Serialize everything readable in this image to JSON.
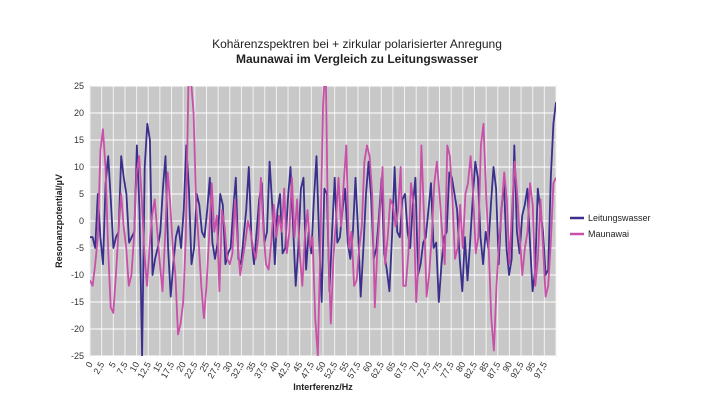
{
  "chart_data": {
    "type": "line",
    "title": "Kohärenzspektren bei + zirkular polarisierter Anregung",
    "subtitle": "Maunawai im Vergleich zu Leitungswasser",
    "xlabel": "Interferenz/Hz",
    "ylabel": "Resonanzpotential/µV",
    "ylim": [
      -25,
      25
    ],
    "yticks": [
      25,
      20,
      15,
      10,
      5,
      0,
      -5,
      -10,
      -15,
      -20,
      -25
    ],
    "x_tick_labels": [
      "0",
      "2,5",
      "5",
      "7,5",
      "10",
      "12,5",
      "15",
      "17,5",
      "20",
      "22,5",
      "25",
      "27,5",
      "30",
      "32,5",
      "35",
      "37,5",
      "40",
      "42,5",
      "45",
      "47,5",
      "50",
      "52,5",
      "55",
      "57,5",
      "60",
      "62,5",
      "65",
      "67,5",
      "70",
      "72,5",
      "75",
      "77,5",
      "80",
      "82,5",
      "85",
      "87,5",
      "90",
      "92,5",
      "95",
      "97,5"
    ],
    "grid": true,
    "legend_position": "right",
    "plot_background": "#c8c8c8",
    "series": [
      {
        "name": "Leitungswasser",
        "color": "#3a2f8c",
        "values": [
          -3,
          -3,
          -5,
          5,
          -3,
          -8,
          7,
          12,
          4,
          -5,
          -3,
          -2,
          12,
          8,
          5,
          -4,
          -3,
          -2,
          14,
          2,
          -25,
          10,
          18,
          15,
          -10,
          -7,
          -5,
          -2,
          6,
          12,
          -5,
          -14,
          -8,
          -3,
          -1,
          -5,
          2,
          14,
          6,
          -8,
          -5,
          5,
          3,
          -2,
          -3,
          2,
          8,
          -4,
          -7,
          -4,
          5,
          3,
          -8,
          -6,
          -5,
          2,
          8,
          -7,
          -8,
          -3,
          2,
          10,
          -3,
          -8,
          -2,
          4,
          7,
          -4,
          -2,
          11,
          3,
          -8,
          2,
          5,
          -6,
          -5,
          4,
          10,
          -1,
          -12,
          -5,
          6,
          8,
          -9,
          -2,
          -6,
          4,
          12,
          -3,
          -15,
          6,
          5,
          -13,
          -2,
          8,
          -4,
          -3,
          2,
          6,
          -4,
          -7,
          -2,
          8,
          -2,
          -14,
          -5,
          5,
          11,
          4,
          -7,
          -5,
          1,
          8,
          -6,
          -9,
          -13,
          -3,
          10,
          -2,
          -3,
          4,
          5,
          -2,
          -5,
          3,
          8,
          -10,
          -8,
          -4,
          -3,
          2,
          7,
          -5,
          -4,
          -15,
          -8,
          -3,
          -2,
          9,
          8,
          5,
          2,
          -7,
          -13,
          -3,
          -11,
          -4,
          4,
          11,
          8,
          -3,
          -8,
          -2,
          -5,
          3,
          10,
          6,
          -8,
          2,
          7,
          -5,
          -10,
          -7,
          14,
          -2,
          -6,
          1,
          3,
          6,
          -4,
          -13,
          -9,
          6,
          2,
          -2,
          -10,
          -9,
          8,
          18,
          22
        ]
      },
      {
        "name": "Maunawai",
        "color": "#c850a8",
        "values": [
          -11,
          -12,
          -8,
          -3,
          13,
          17,
          10,
          -5,
          -16,
          -17,
          -10,
          -2,
          5,
          -1,
          -5,
          -12,
          -10,
          -3,
          9,
          12,
          4,
          -6,
          -12,
          -5,
          1,
          4,
          -2,
          -8,
          -13,
          -3,
          9,
          3,
          -5,
          -10,
          -21,
          -19,
          -15,
          -3,
          25,
          26,
          20,
          3,
          -4,
          -12,
          -18,
          -12,
          -3,
          7,
          -2,
          1,
          -13,
          2,
          -1,
          -7,
          -8,
          -6,
          4,
          -4,
          -10,
          -7,
          -4,
          0,
          -2,
          -5,
          -7,
          -3,
          8,
          -2,
          -8,
          -9,
          -4,
          3,
          -3,
          1,
          -2,
          6,
          -6,
          -2,
          8,
          -3,
          4,
          -6,
          -12,
          -3,
          2,
          -5,
          -3,
          -18,
          -25,
          -4,
          21,
          30,
          -4,
          -19,
          -7,
          0,
          8,
          -1,
          7,
          14,
          -5,
          -2,
          -12,
          -11,
          -5,
          -1,
          11,
          14,
          12,
          5,
          -16,
          -5,
          2,
          10,
          -8,
          -3,
          4,
          3,
          -1,
          2,
          10,
          -12,
          -12,
          -6,
          7,
          3,
          -15,
          -7,
          14,
          1,
          -14,
          -10,
          -3,
          7,
          11,
          5,
          -2,
          -8,
          14,
          12,
          4,
          -7,
          -5,
          3,
          -5,
          5,
          7,
          12,
          5,
          -6,
          -3,
          14,
          18,
          5,
          -5,
          -18,
          -24,
          -12,
          -4,
          2,
          9,
          4,
          -8,
          2,
          11,
          5,
          -3,
          -10,
          -5,
          -2,
          7,
          3,
          -12,
          -7,
          4,
          -5,
          -14,
          -12,
          -4,
          7,
          8
        ]
      }
    ]
  }
}
